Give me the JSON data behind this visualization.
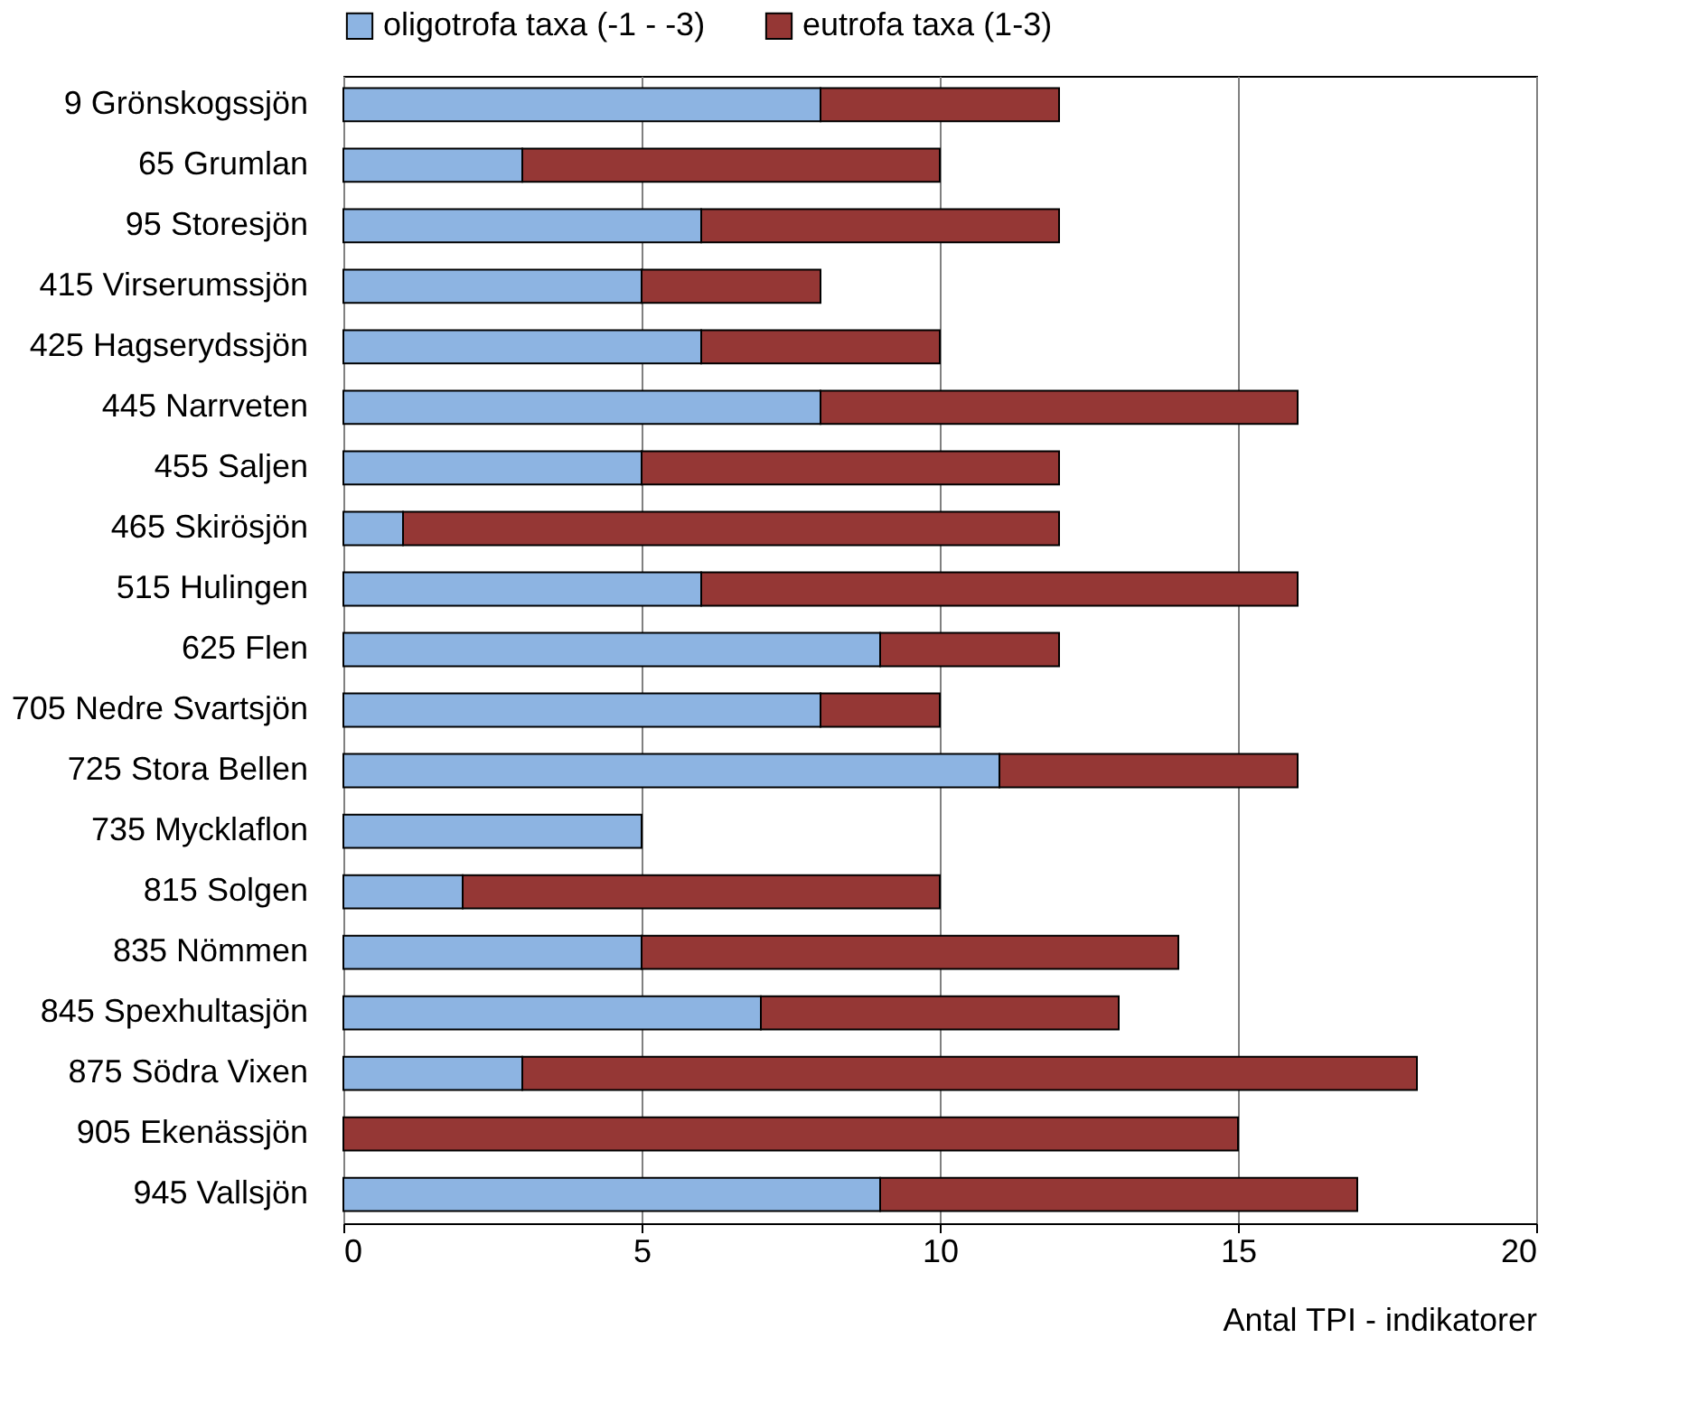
{
  "chart_data": {
    "type": "bar",
    "orientation": "horizontal",
    "stacked": true,
    "categories": [
      "9 Grönskogssjön",
      "65 Grumlan",
      "95 Storesjön",
      "415 Virserumssjön",
      "425 Hagserydssjön",
      "445 Narrveten",
      "455 Saljen",
      "465 Skirösjön",
      "515 Hulingen",
      "625 Flen",
      "705 Nedre Svartsjön",
      "725 Stora Bellen",
      "735 Mycklaflon",
      "815 Solgen",
      "835 Nömmen",
      "845 Spexhultasjön",
      "875 Södra Vixen",
      "905 Ekenässjön",
      "945 Vallsjön"
    ],
    "series": [
      {
        "name": "oligotrofa taxa (-1 - -3)",
        "color": "#8db4e2",
        "values": [
          8,
          3,
          6,
          5,
          6,
          8,
          5,
          1,
          6,
          9,
          8,
          11,
          5,
          2,
          5,
          7,
          3,
          0,
          9
        ]
      },
      {
        "name": "eutrofa taxa (1-3)",
        "color": "#953735",
        "values": [
          4,
          7,
          6,
          3,
          4,
          8,
          7,
          11,
          10,
          3,
          2,
          5,
          0,
          8,
          9,
          6,
          15,
          15,
          8
        ]
      }
    ],
    "xlabel": "Antal TPI - indikatorer",
    "xlim": [
      0,
      20
    ],
    "xticks": [
      0,
      5,
      10,
      15,
      20
    ],
    "grid": "x",
    "legend": "top"
  }
}
